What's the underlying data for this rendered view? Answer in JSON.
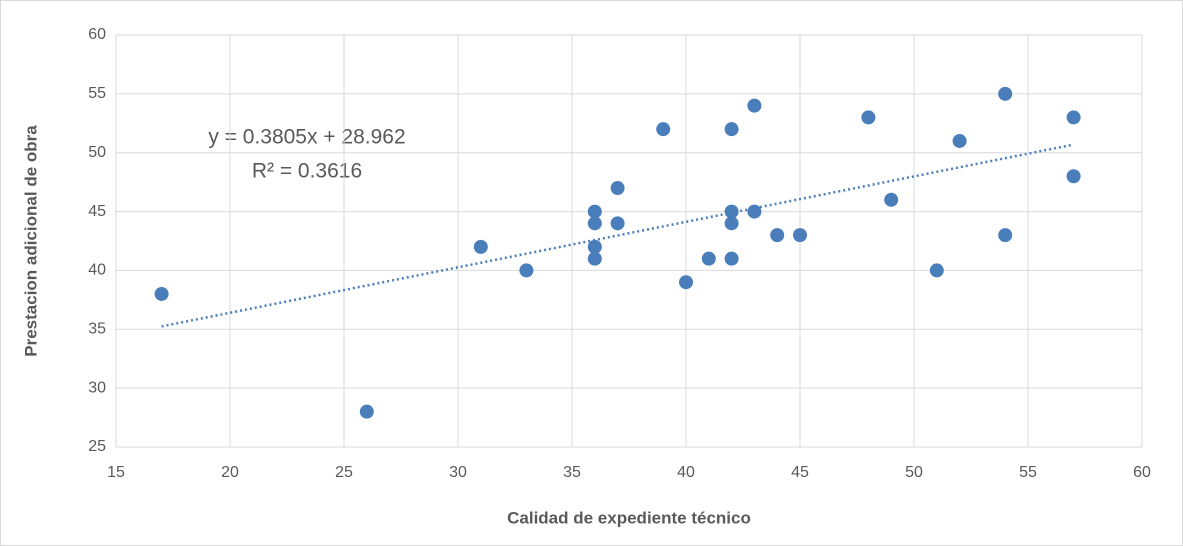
{
  "chart_data": {
    "type": "scatter",
    "x_label": "Calidad  de expediente técnico",
    "y_label": "Prestacion adicional de obra",
    "annotations": [
      "y = 0.3805x + 28.962",
      "R² = 0.3616"
    ],
    "trendline": "linear",
    "grid": true,
    "xlim": [
      15,
      60
    ],
    "xticks": [
      15,
      20,
      25,
      30,
      35,
      40,
      45,
      50,
      55,
      60
    ],
    "ylim": [
      25,
      60
    ],
    "yticks": [
      25,
      30,
      35,
      40,
      45,
      50,
      55,
      60
    ],
    "series": [
      {
        "color": "#4a7ebb",
        "x": [
          17,
          26,
          31,
          33,
          36,
          36,
          36,
          36,
          37,
          37,
          39,
          40,
          41,
          42,
          42,
          42,
          42,
          43,
          43,
          44,
          45,
          48,
          49,
          51,
          52,
          54,
          54,
          57,
          57
        ],
        "values": [
          38,
          28,
          42,
          40,
          45,
          44,
          42,
          41,
          47,
          44,
          52,
          39,
          41,
          52,
          45,
          44,
          41,
          54,
          45,
          43,
          43,
          53,
          46,
          40,
          51,
          55,
          43,
          53,
          48
        ]
      }
    ]
  }
}
